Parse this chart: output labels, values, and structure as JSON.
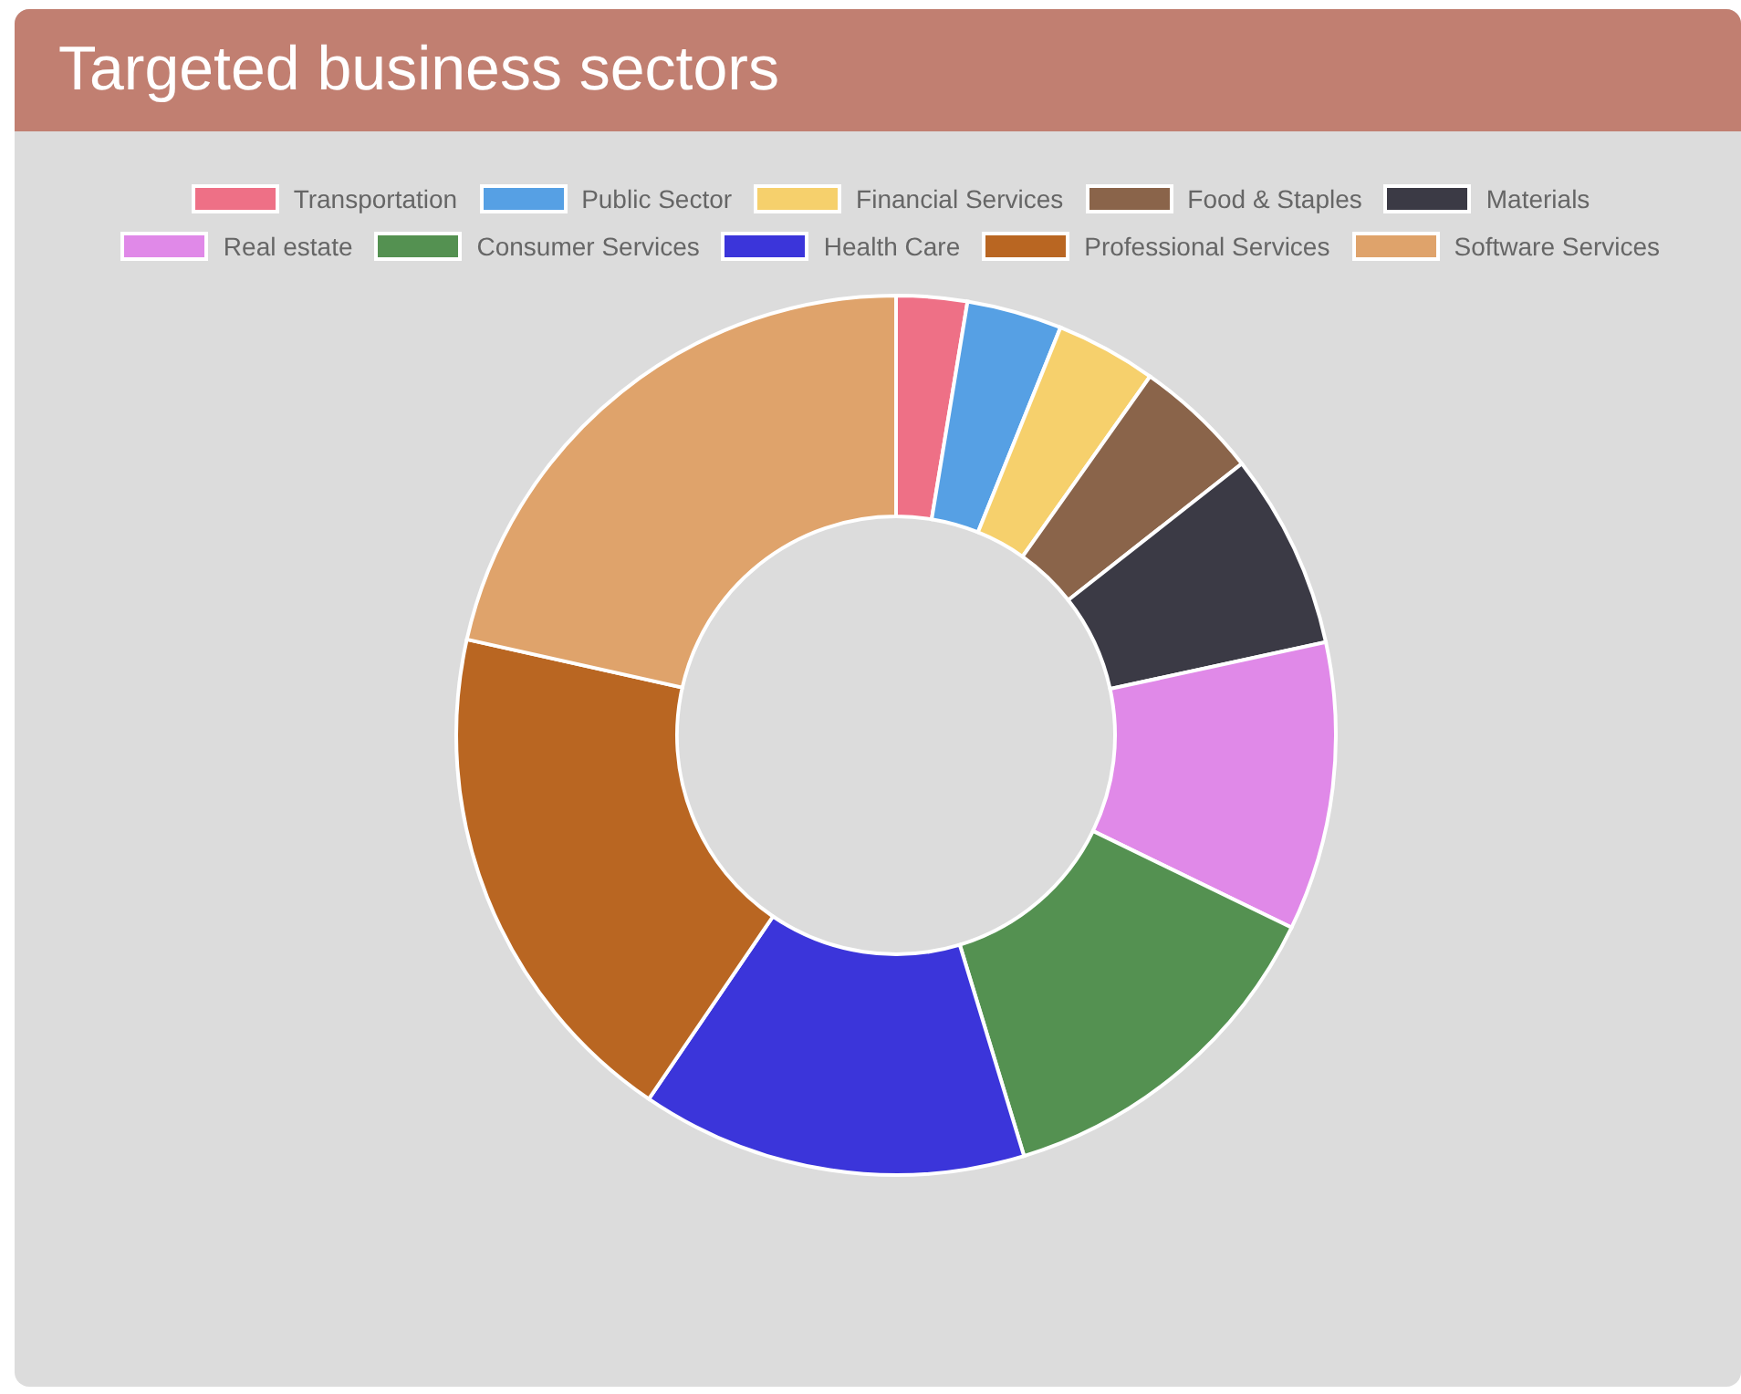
{
  "chart_data": {
    "type": "donut",
    "title": "Targeted business sectors",
    "categories": [
      "Transportation",
      "Public Sector",
      "Financial Services",
      "Food & Staples",
      "Materials",
      "Real estate",
      "Consumer Services",
      "Health Care",
      "Professional Services",
      "Software Services"
    ],
    "values": [
      2.6,
      3.5,
      3.7,
      4.6,
      7.2,
      10.6,
      13.1,
      14.2,
      19.0,
      21.5
    ],
    "colors": [
      "#ee7086",
      "#56a0e4",
      "#f6d06c",
      "#8a644a",
      "#3b3a45",
      "#e089e8",
      "#549151",
      "#3b35da",
      "#b96622",
      "#dfa36b"
    ],
    "legend": "top"
  }
}
